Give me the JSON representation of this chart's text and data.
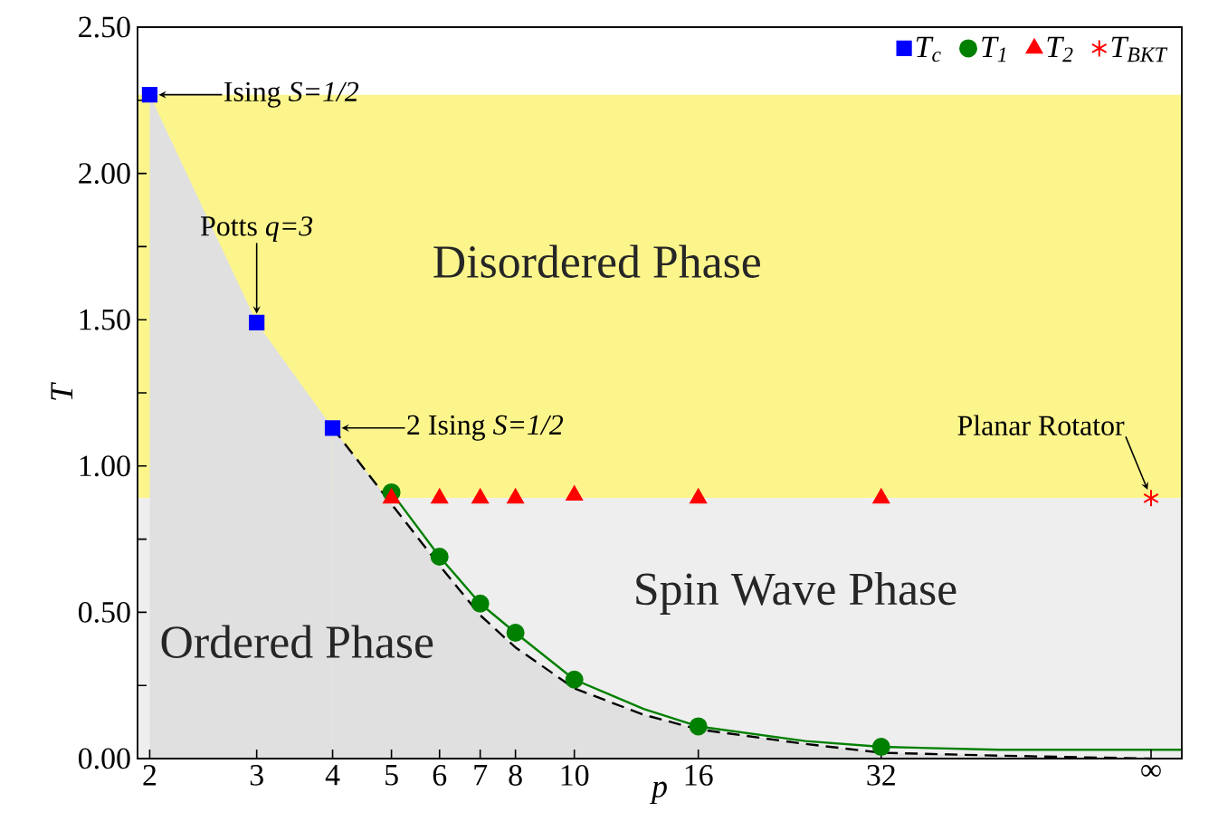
{
  "chart_data": {
    "type": "scatter",
    "xlabel": "p",
    "ylabel": "T",
    "log": "x",
    "xlim": [
      1.91,
      100
    ],
    "ylim": [
      0,
      2.5
    ],
    "xticks": [
      2,
      3,
      4,
      5,
      6,
      7,
      8,
      10,
      16,
      32,
      {
        "value": 89,
        "label": "∞"
      }
    ],
    "yticks": [
      {
        "value": 0,
        "label": "0.00"
      },
      {
        "value": 0.25,
        "label": null
      },
      {
        "value": 0.5,
        "label": "0.50"
      },
      {
        "value": 0.75,
        "label": null
      },
      {
        "value": 1,
        "label": "1.00"
      },
      {
        "value": 1.25,
        "label": null
      },
      {
        "value": 1.5,
        "label": "1.50"
      },
      {
        "value": 1.75,
        "label": null
      },
      {
        "value": 2,
        "label": "2.00"
      },
      {
        "value": 2.25,
        "label": null
      },
      {
        "value": 2.5,
        "label": "2.50"
      }
    ],
    "legend": "top right",
    "bands": [
      {
        "axis": "y",
        "from": 0.89,
        "to": 2.269,
        "label": "Disordered Phase",
        "color": "#fcf58c"
      },
      {
        "axis": "y",
        "from": 0,
        "to": 0.89,
        "label": "Spin Wave Phase",
        "color": "#eeeeee"
      }
    ],
    "series": [
      {
        "type": "area",
        "name": "Ordered Phase",
        "color": "#e0e0e0",
        "x": [
          2,
          3,
          4
        ],
        "values": [
          2.269,
          1.49,
          1.13
        ]
      },
      {
        "type": "area",
        "color": "#e0e0e0",
        "line_style": "dashed",
        "x": [
          4,
          5,
          6,
          7,
          8,
          10,
          13,
          16,
          24,
          32,
          50,
          89
        ],
        "values": [
          1.13,
          0.87,
          0.66,
          0.49,
          0.38,
          0.24,
          0.15,
          0.1,
          0.05,
          0.02,
          0.01,
          0
        ]
      },
      {
        "type": "line",
        "color": "#008000",
        "line_style": "solid",
        "marker": "none",
        "x": [
          5,
          6,
          7,
          8,
          10,
          13,
          16,
          24,
          32,
          50,
          89,
          100
        ],
        "values": [
          0.91,
          0.69,
          0.53,
          0.43,
          0.27,
          0.17,
          0.11,
          0.06,
          0.04,
          0.03,
          0.03,
          0.03
        ]
      },
      {
        "name": "T$_{c}$",
        "color": "#0000ff",
        "marker": "square",
        "x": [
          2,
          3,
          4
        ],
        "values": [
          2.269,
          1.49,
          1.13
        ]
      },
      {
        "name": "T$_{1}$",
        "color": "#008000",
        "marker": "circle",
        "x": [
          5,
          6,
          7,
          8,
          10,
          16,
          32
        ],
        "values": [
          0.91,
          0.69,
          0.53,
          0.43,
          0.27,
          0.11,
          0.04
        ]
      },
      {
        "name": "T$_{2}$",
        "color": "#ff0000",
        "marker": "triangle",
        "x": [
          5,
          6,
          7,
          8,
          10,
          16,
          32
        ],
        "values": [
          0.89,
          0.89,
          0.89,
          0.89,
          0.9,
          0.89,
          0.89
        ]
      },
      {
        "name": "T$_{BKT}$",
        "color": "#ff0000",
        "marker": "cross",
        "x": [
          89
        ],
        "values": [
          0.89
        ]
      }
    ],
    "annotations": [
      {
        "text": "Ising *S=1/2*",
        "x": 2,
        "y": 2.269
      },
      {
        "text": "Potts *q=3*",
        "x": 3,
        "y": 1.49
      },
      {
        "text": "2 Ising *S=1/2*",
        "x": 4,
        "y": 1.13
      },
      {
        "text": "Planar Rotator",
        "x": 89,
        "y": 0.89
      }
    ]
  }
}
